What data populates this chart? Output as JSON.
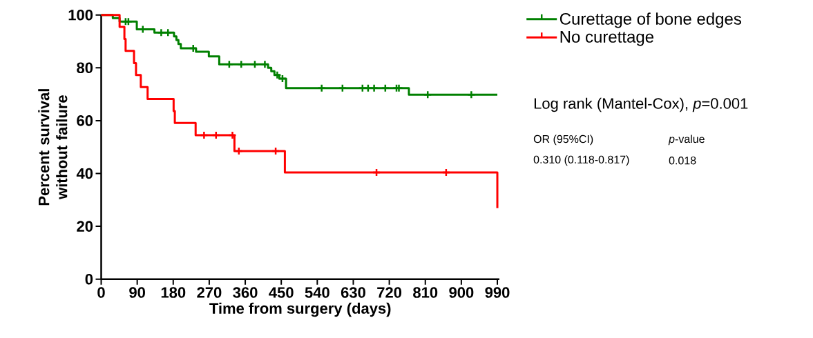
{
  "chart_data": {
    "type": "step",
    "xlabel": "Time from surgery (days)",
    "ylabel": "Percent survival without failure",
    "series": [
      {
        "name": "Curettage of bone edges",
        "color": "#008000",
        "x": [
          0,
          29,
          46,
          89,
          133,
          182,
          188,
          193,
          199,
          237,
          269,
          295,
          417,
          425,
          433,
          445,
          462,
          769,
          990
        ],
        "values": [
          100,
          98.8,
          97.5,
          94.6,
          93.3,
          91.9,
          90.5,
          89.0,
          87.4,
          86.1,
          84.3,
          81.3,
          80.0,
          78.7,
          77.3,
          75.9,
          72.3,
          69.8,
          69.8
        ]
      },
      {
        "name": "No curettage",
        "color": "#ff0000",
        "x": [
          0,
          46,
          58,
          61,
          82,
          87,
          99,
          116,
          181,
          184,
          236,
          333,
          459,
          990
        ],
        "values": [
          100,
          95.5,
          90.9,
          86.4,
          81.8,
          77.3,
          72.7,
          68.2,
          63.6,
          59.1,
          54.5,
          48.5,
          40.4,
          26.9
        ]
      },
      {
        "type": "scatter",
        "marker": "cross",
        "color": "#008000",
        "x": [
          61,
          68,
          104,
          150,
          167,
          230,
          320,
          350,
          384,
          409,
          440,
          453,
          551,
          603,
          653,
          667,
          682,
          710,
          738,
          744,
          816,
          925
        ],
        "values": [
          97.5,
          97.5,
          94.6,
          93.3,
          93.3,
          87.4,
          81.3,
          81.3,
          81.3,
          81.3,
          77.3,
          75.9,
          72.3,
          72.3,
          72.3,
          72.3,
          72.3,
          72.3,
          72.3,
          72.3,
          69.8,
          69.8
        ]
      },
      {
        "type": "scatter",
        "marker": "cross",
        "color": "#ff0000",
        "x": [
          257,
          287,
          328,
          344,
          436,
          688,
          862
        ],
        "values": [
          54.5,
          54.5,
          54.5,
          48.5,
          48.5,
          40.4,
          40.4
        ]
      }
    ],
    "xlim": [
      0,
      995
    ],
    "ylim": [
      0,
      100
    ],
    "xticks": [
      0,
      90,
      180,
      270,
      360,
      450,
      540,
      630,
      720,
      810,
      900,
      990
    ],
    "yticks": [
      0,
      20,
      40,
      60,
      80,
      100
    ],
    "legend": "right",
    "annotations": [
      "Log rank (Mantel-Cox), *p*=0.001",
      "OR (95%CI)",
      "*p*-value",
      "0.310 (0.118-0.817)",
      "0.018"
    ]
  }
}
